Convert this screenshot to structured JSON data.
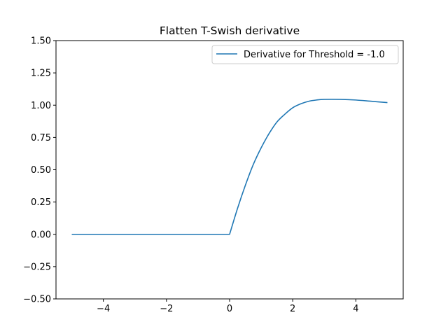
{
  "chart_data": {
    "type": "line",
    "title": "Flatten T-Swish derivative",
    "xlabel": "",
    "ylabel": "",
    "xlim": [
      -5.5,
      5.5
    ],
    "ylim": [
      -0.5,
      1.5
    ],
    "x_ticks": [
      -4,
      -2,
      0,
      2,
      4
    ],
    "x_tick_labels": [
      "−4",
      "−2",
      "0",
      "2",
      "4"
    ],
    "y_ticks": [
      -0.5,
      -0.25,
      0.0,
      0.25,
      0.5,
      0.75,
      1.0,
      1.25,
      1.5
    ],
    "y_tick_labels": [
      "−0.50",
      "−0.25",
      "0.00",
      "0.25",
      "0.50",
      "0.75",
      "1.00",
      "1.25",
      "1.50"
    ],
    "grid": false,
    "legend_position": "top-right",
    "series": [
      {
        "name": "Derivative for Threshold = -1.0",
        "color": "#1f77b4",
        "x": [
          -5.0,
          -4.0,
          -3.0,
          -2.0,
          -1.0,
          0.0,
          0.25,
          0.5,
          0.75,
          1.0,
          1.25,
          1.5,
          1.75,
          2.0,
          2.25,
          2.5,
          2.75,
          3.0,
          3.5,
          4.0,
          4.5,
          5.0
        ],
        "y": [
          0.0,
          0.0,
          0.0,
          0.0,
          0.0,
          0.0,
          0.2,
          0.38,
          0.54,
          0.67,
          0.78,
          0.87,
          0.93,
          0.98,
          1.01,
          1.03,
          1.04,
          1.045,
          1.045,
          1.04,
          1.03,
          1.02
        ]
      }
    ]
  }
}
